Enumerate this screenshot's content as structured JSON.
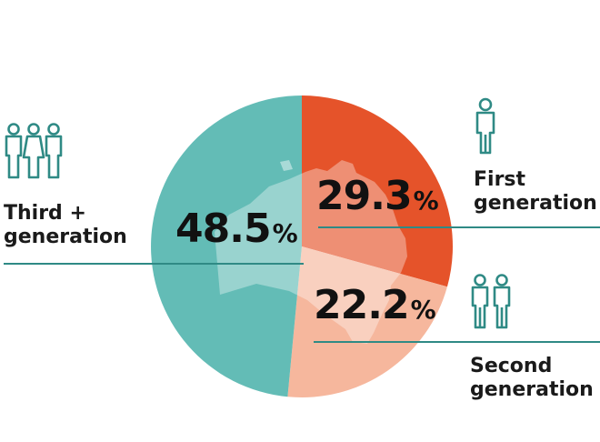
{
  "chart_data": {
    "type": "pie",
    "slices": [
      {
        "label": "First generation",
        "label_lines": [
          "First",
          "generation"
        ],
        "value": 29.3,
        "value_text": "29.3",
        "color": "#e5532a"
      },
      {
        "label": "Second generation",
        "label_lines": [
          "Second",
          "generation"
        ],
        "value": 22.2,
        "value_text": "22.2",
        "color": "#f6b79d"
      },
      {
        "label": "Third + generation",
        "label_lines": [
          "Third +",
          "generation"
        ],
        "value": 48.5,
        "value_text": "48.5",
        "color": "#63bcb6"
      }
    ],
    "unit": "%",
    "start_angle_deg": 0,
    "direction": "clockwise"
  },
  "colors": {
    "icon": "#2f8a85",
    "rule": "#2f8a85",
    "map_overlay": "#ffffff"
  },
  "icons": {
    "first": "single-person-icon",
    "second": "two-people-icon",
    "third": "family-icon"
  }
}
